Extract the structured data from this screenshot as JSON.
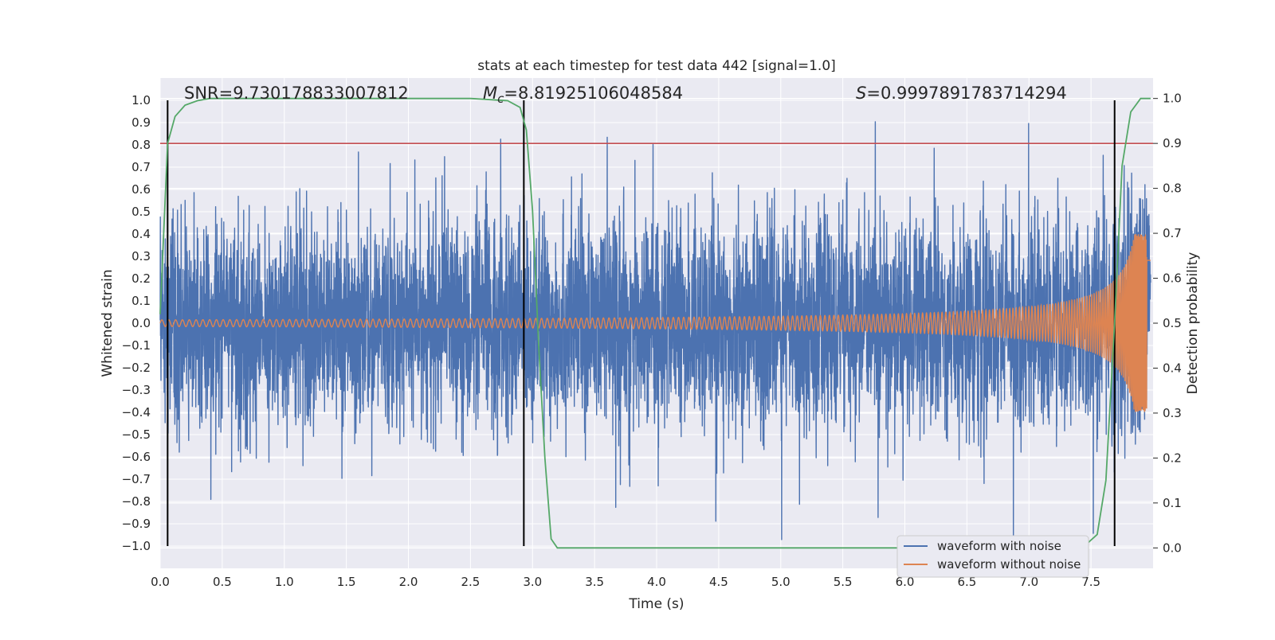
{
  "chart_data": {
    "type": "line",
    "title": "stats at each timestep for test data 442 [signal=1.0]",
    "xlabel": "Time (s)",
    "ylabel": "Whitened strain",
    "y2label": "Detection probability",
    "xlim": [
      0.0,
      8.0
    ],
    "ylim": [
      -1.1,
      1.1
    ],
    "y2lim": [
      -0.0455,
      1.0455
    ],
    "x_ticks": [
      0.0,
      0.5,
      1.0,
      1.5,
      2.0,
      2.5,
      3.0,
      3.5,
      4.0,
      4.5,
      5.0,
      5.5,
      6.0,
      6.5,
      7.0,
      7.5
    ],
    "x_tick_labels": [
      "0.0",
      "0.5",
      "1.0",
      "1.5",
      "2.0",
      "2.5",
      "3.0",
      "3.5",
      "4.0",
      "4.5",
      "5.0",
      "5.5",
      "6.0",
      "6.5",
      "7.0",
      "7.5"
    ],
    "y_ticks": [
      -1.0,
      -0.9,
      -0.8,
      -0.7,
      -0.6,
      -0.5,
      -0.4,
      -0.3,
      -0.2,
      -0.1,
      0.0,
      0.1,
      0.2,
      0.3,
      0.4,
      0.5,
      0.6,
      0.7,
      0.8,
      0.9,
      1.0
    ],
    "y_tick_labels": [
      "−1.0",
      "−0.9",
      "−0.8",
      "−0.7",
      "−0.6",
      "−0.5",
      "−0.4",
      "−0.3",
      "−0.2",
      "−0.1",
      "0.0",
      "0.1",
      "0.2",
      "0.3",
      "0.4",
      "0.5",
      "0.6",
      "0.7",
      "0.8",
      "0.9",
      "1.0"
    ],
    "y2_ticks": [
      0.0,
      0.1,
      0.2,
      0.3,
      0.4,
      0.5,
      0.6,
      0.7,
      0.8,
      0.9,
      1.0
    ],
    "y2_tick_labels": [
      "0.0",
      "0.1",
      "0.2",
      "0.3",
      "0.4",
      "0.5",
      "0.6",
      "0.7",
      "0.8",
      "0.9",
      "1.0"
    ],
    "grid": true,
    "legend_position": "bottom-right",
    "annotations": {
      "snr": "SNR=9.730178833007812",
      "mc": "M",
      "mc_sub": "c",
      "mc_value": "=8.81925106048584",
      "s": "S",
      "s_value": "=0.9997891783714294"
    },
    "threshold": {
      "y2": 0.9,
      "color": "#c44e52"
    },
    "vertical_markers": [
      0.06,
      2.93,
      7.69
    ],
    "series": [
      {
        "name": "waveform with noise",
        "color": "#4c72b0",
        "description_peak_abs": 1.0
      },
      {
        "name": "waveform without noise",
        "color": "#dd8452",
        "start_amp": 0.015,
        "end_amp": 0.4,
        "t_merge": 7.95
      },
      {
        "name": "",
        "color": "#55a868",
        "axis": "y2",
        "x": [
          0.0,
          0.06,
          0.12,
          0.2,
          0.3,
          0.4,
          0.6,
          1.0,
          1.5,
          2.0,
          2.5,
          2.8,
          2.9,
          2.95,
          3.0,
          3.05,
          3.1,
          3.15,
          3.2,
          3.3,
          4.0,
          5.0,
          6.0,
          7.0,
          7.3,
          7.45,
          7.55,
          7.62,
          7.69,
          7.75,
          7.82,
          7.9,
          7.98
        ],
        "values": [
          0.52,
          0.9,
          0.96,
          0.985,
          0.995,
          1.0,
          1.0,
          1.0,
          1.0,
          1.0,
          1.0,
          0.995,
          0.98,
          0.93,
          0.75,
          0.45,
          0.2,
          0.02,
          0.0,
          0.0,
          0.0,
          0.0,
          0.0,
          0.0,
          0.0,
          0.005,
          0.03,
          0.15,
          0.5,
          0.85,
          0.97,
          1.0,
          1.0
        ]
      }
    ]
  }
}
